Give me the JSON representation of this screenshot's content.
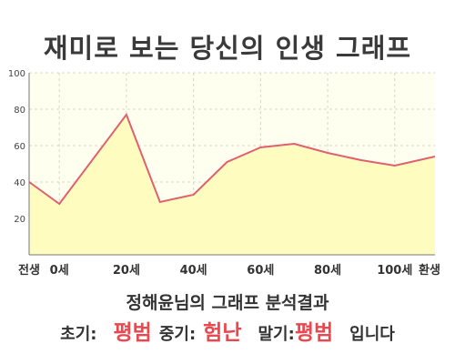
{
  "title": "재미로 보는 당신의 인생 그래프",
  "chart_data": {
    "type": "area",
    "x": [
      -9,
      0,
      20,
      30,
      40,
      50,
      60,
      70,
      80,
      90,
      100,
      112
    ],
    "values": [
      40,
      28,
      77,
      29,
      33,
      51,
      59,
      61,
      56,
      52,
      49,
      54
    ],
    "xticks": [
      {
        "x": -9,
        "label": "전생"
      },
      {
        "x": 0,
        "label": "0세"
      },
      {
        "x": 20,
        "label": "20세"
      },
      {
        "x": 40,
        "label": "40세"
      },
      {
        "x": 60,
        "label": "60세"
      },
      {
        "x": 80,
        "label": "80세"
      },
      {
        "x": 100,
        "label": "100세"
      },
      {
        "x": 112,
        "label": "환생"
      }
    ],
    "yticks": [
      20,
      40,
      60,
      80,
      100
    ],
    "ylim": [
      0,
      100
    ],
    "grid": true,
    "line_color": "#e06070",
    "fill_color": "#fffcc0",
    "plot_bg": "#fffff0"
  },
  "result": {
    "heading": "정해윤님의 그래프 분석결과",
    "early_label": "초기:",
    "early_value": "평범",
    "mid_label": "중기:",
    "mid_value": "험난",
    "late_label": "말기:",
    "late_value": "평범",
    "suffix": "입니다"
  }
}
